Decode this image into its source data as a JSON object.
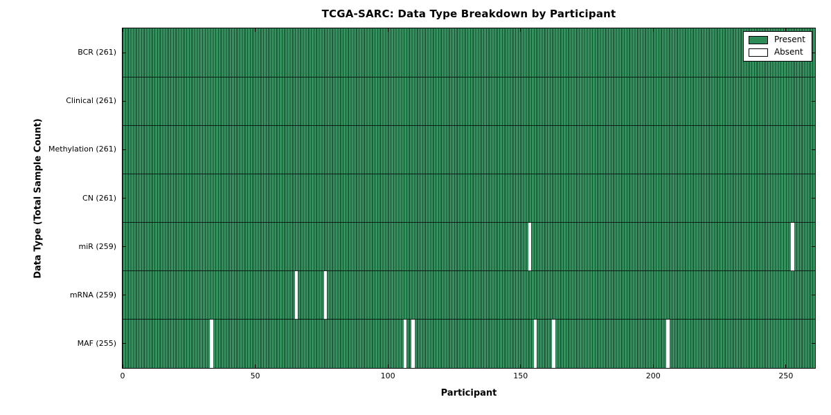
{
  "chart_data": {
    "type": "heatmap",
    "title": "TCGA-SARC: Data Type Breakdown by Participant",
    "xlabel": "Participant",
    "ylabel": "Data Type (Total Sample Count)",
    "x_ticks": [
      0,
      50,
      100,
      150,
      200,
      250
    ],
    "xlim": [
      0,
      261
    ],
    "n_participants": 261,
    "grid": false,
    "legend_position": "upper right",
    "legend": [
      {
        "label": "Present",
        "color": "#2E8B57"
      },
      {
        "label": "Absent",
        "color": "#FFFFFF"
      }
    ],
    "colors": {
      "present_fill": "#35925f",
      "bar_edge": "#1b4f33",
      "absent_fill": "#FFFFFF",
      "axis": "#000000"
    },
    "rows": [
      {
        "label": "BCR (261)",
        "total": 261,
        "absent": []
      },
      {
        "label": "Clinical (261)",
        "total": 261,
        "absent": []
      },
      {
        "label": "Methylation (261)",
        "total": 261,
        "absent": []
      },
      {
        "label": "CN (261)",
        "total": 261,
        "absent": []
      },
      {
        "label": "miR (259)",
        "total": 259,
        "absent": [
          153,
          252
        ]
      },
      {
        "label": "mRNA (259)",
        "total": 259,
        "absent": [
          65,
          76
        ]
      },
      {
        "label": "MAF (255)",
        "total": 255,
        "absent": [
          33,
          106,
          109,
          155,
          162,
          205
        ]
      }
    ]
  }
}
